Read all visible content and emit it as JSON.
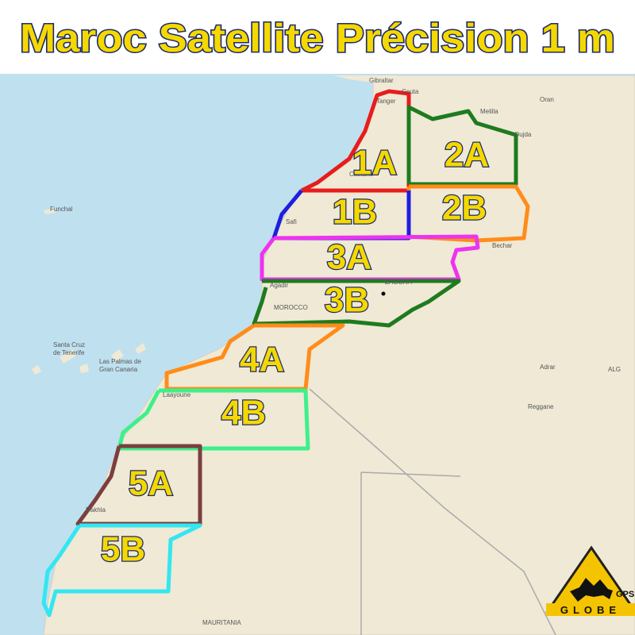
{
  "header": {
    "title": "Maroc Satellite Précision 1 m"
  },
  "zones": [
    {
      "label": "1A"
    },
    {
      "label": "2A"
    },
    {
      "label": "1B"
    },
    {
      "label": "2B"
    },
    {
      "label": "3A"
    },
    {
      "label": "3B"
    },
    {
      "label": "4A"
    },
    {
      "label": "4B"
    },
    {
      "label": "5A"
    },
    {
      "label": "5B"
    }
  ],
  "places": [
    {
      "name": "Gibraltar"
    },
    {
      "name": "Ceuta"
    },
    {
      "name": "Tanger"
    },
    {
      "name": "Melilla"
    },
    {
      "name": "Oran"
    },
    {
      "name": "Oujda"
    },
    {
      "name": "Casabla"
    },
    {
      "name": "Safi"
    },
    {
      "name": "Funchal"
    },
    {
      "name": "Agadir"
    },
    {
      "name": "MOROCCO"
    },
    {
      "name": "ZAGORA"
    },
    {
      "name": "Bechar"
    },
    {
      "name": "Santa Cruz"
    },
    {
      "name": "de Tenerife"
    },
    {
      "name": "Las Palmas de"
    },
    {
      "name": "Gran Canaria"
    },
    {
      "name": "Laayoune"
    },
    {
      "name": "Dakhla"
    },
    {
      "name": "Adrar"
    },
    {
      "name": "Reggane"
    },
    {
      "name": "ALG"
    },
    {
      "name": "MAURITANIA"
    }
  ],
  "logo": {
    "gps": "GPS",
    "globe": "GLOBE"
  }
}
